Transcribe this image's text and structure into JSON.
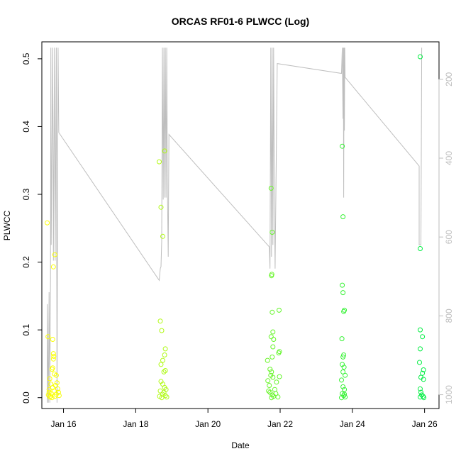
{
  "chart_data": {
    "type": "scatter",
    "title": "ORCAS RF01-6 PLWCC (Log)",
    "xlabel": "Date",
    "ylabel": "PLWCC",
    "xlim": [
      15.4,
      26.4
    ],
    "ylim": [
      -0.016,
      0.525
    ],
    "x_ticks": [
      {
        "value": 16,
        "label": "Jan 16"
      },
      {
        "value": 18,
        "label": "Jan 18"
      },
      {
        "value": 20,
        "label": "Jan 20"
      },
      {
        "value": 22,
        "label": "Jan 22"
      },
      {
        "value": 24,
        "label": "Jan 24"
      },
      {
        "value": 26,
        "label": "Jan 26"
      }
    ],
    "y_ticks": [
      {
        "value": 0.0,
        "label": "0.0"
      },
      {
        "value": 0.1,
        "label": "0.1"
      },
      {
        "value": 0.2,
        "label": "0.2"
      },
      {
        "value": 0.3,
        "label": "0.3"
      },
      {
        "value": 0.4,
        "label": "0.4"
      },
      {
        "value": 0.5,
        "label": "0.5"
      }
    ],
    "y2_ticks": [
      {
        "value": 200,
        "label": "200"
      },
      {
        "value": 400,
        "label": "400"
      },
      {
        "value": 600,
        "label": "600"
      },
      {
        "value": 800,
        "label": "800"
      },
      {
        "value": 1000,
        "label": "1000"
      }
    ],
    "y2lim": [
      105,
      1035
    ],
    "y2_reversed": true,
    "grid": false,
    "legend": "none",
    "colors": {
      "points_start": "#ffff00",
      "points_end": "#00ee44",
      "line": "#bebebe",
      "axis": "#000000",
      "axis2": "#bebebe"
    },
    "scatter_points": [
      {
        "x": 15.55,
        "y": 0.258
      },
      {
        "x": 15.57,
        "y": 0.09
      },
      {
        "x": 15.62,
        "y": 0.028
      },
      {
        "x": 15.7,
        "y": 0.086
      },
      {
        "x": 15.72,
        "y": 0.065
      },
      {
        "x": 15.73,
        "y": 0.061
      },
      {
        "x": 15.72,
        "y": 0.057
      },
      {
        "x": 15.7,
        "y": 0.044
      },
      {
        "x": 15.68,
        "y": 0.042
      },
      {
        "x": 15.75,
        "y": 0.035
      },
      {
        "x": 15.8,
        "y": 0.033
      },
      {
        "x": 15.76,
        "y": 0.211
      },
      {
        "x": 15.72,
        "y": 0.193
      },
      {
        "x": 15.65,
        "y": 0.02
      },
      {
        "x": 15.6,
        "y": 0.012
      },
      {
        "x": 15.58,
        "y": 0.004
      },
      {
        "x": 15.62,
        "y": 0.001
      },
      {
        "x": 15.66,
        "y": 0.006
      },
      {
        "x": 15.7,
        "y": 0.015
      },
      {
        "x": 15.74,
        "y": 0.01
      },
      {
        "x": 15.78,
        "y": 0.018
      },
      {
        "x": 15.82,
        "y": 0.022
      },
      {
        "x": 15.86,
        "y": 0.008
      },
      {
        "x": 15.88,
        "y": 0.003
      },
      {
        "x": 15.64,
        "y": 0.002
      },
      {
        "x": 15.68,
        "y": 0.0
      },
      {
        "x": 15.76,
        "y": 0.002
      },
      {
        "x": 15.84,
        "y": 0.013
      },
      {
        "x": 15.8,
        "y": 0.005
      },
      {
        "x": 15.6,
        "y": 0.008
      },
      {
        "x": 18.65,
        "y": 0.348
      },
      {
        "x": 18.7,
        "y": 0.281
      },
      {
        "x": 18.75,
        "y": 0.238
      },
      {
        "x": 18.8,
        "y": 0.364
      },
      {
        "x": 18.68,
        "y": 0.113
      },
      {
        "x": 18.72,
        "y": 0.099
      },
      {
        "x": 18.82,
        "y": 0.072
      },
      {
        "x": 18.8,
        "y": 0.063
      },
      {
        "x": 18.75,
        "y": 0.055
      },
      {
        "x": 18.7,
        "y": 0.049
      },
      {
        "x": 18.82,
        "y": 0.04
      },
      {
        "x": 18.78,
        "y": 0.038
      },
      {
        "x": 18.7,
        "y": 0.024
      },
      {
        "x": 18.75,
        "y": 0.02
      },
      {
        "x": 18.8,
        "y": 0.015
      },
      {
        "x": 18.68,
        "y": 0.01
      },
      {
        "x": 18.74,
        "y": 0.005
      },
      {
        "x": 18.82,
        "y": 0.003
      },
      {
        "x": 18.86,
        "y": 0.001
      },
      {
        "x": 18.66,
        "y": 0.002
      },
      {
        "x": 18.78,
        "y": 0.008
      },
      {
        "x": 18.84,
        "y": 0.012
      },
      {
        "x": 18.72,
        "y": 0.0
      },
      {
        "x": 21.75,
        "y": 0.309
      },
      {
        "x": 21.78,
        "y": 0.244
      },
      {
        "x": 21.77,
        "y": 0.182
      },
      {
        "x": 21.76,
        "y": 0.18
      },
      {
        "x": 21.97,
        "y": 0.129
      },
      {
        "x": 21.78,
        "y": 0.126
      },
      {
        "x": 21.8,
        "y": 0.097
      },
      {
        "x": 21.75,
        "y": 0.09
      },
      {
        "x": 21.82,
        "y": 0.086
      },
      {
        "x": 21.8,
        "y": 0.075
      },
      {
        "x": 21.98,
        "y": 0.068
      },
      {
        "x": 21.96,
        "y": 0.066
      },
      {
        "x": 21.65,
        "y": 0.055
      },
      {
        "x": 21.78,
        "y": 0.06
      },
      {
        "x": 21.72,
        "y": 0.042
      },
      {
        "x": 21.76,
        "y": 0.038
      },
      {
        "x": 21.74,
        "y": 0.033
      },
      {
        "x": 21.8,
        "y": 0.03
      },
      {
        "x": 21.98,
        "y": 0.031
      },
      {
        "x": 21.66,
        "y": 0.025
      },
      {
        "x": 21.7,
        "y": 0.018
      },
      {
        "x": 21.9,
        "y": 0.023
      },
      {
        "x": 21.85,
        "y": 0.012
      },
      {
        "x": 21.72,
        "y": 0.008
      },
      {
        "x": 21.78,
        "y": 0.004
      },
      {
        "x": 21.82,
        "y": 0.002
      },
      {
        "x": 21.76,
        "y": 0.0
      },
      {
        "x": 21.88,
        "y": 0.006
      },
      {
        "x": 21.68,
        "y": 0.01
      },
      {
        "x": 21.94,
        "y": 0.001
      },
      {
        "x": 23.72,
        "y": 0.371
      },
      {
        "x": 23.74,
        "y": 0.267
      },
      {
        "x": 23.72,
        "y": 0.166
      },
      {
        "x": 23.74,
        "y": 0.155
      },
      {
        "x": 23.78,
        "y": 0.129
      },
      {
        "x": 23.76,
        "y": 0.127
      },
      {
        "x": 23.71,
        "y": 0.087
      },
      {
        "x": 23.76,
        "y": 0.063
      },
      {
        "x": 23.74,
        "y": 0.06
      },
      {
        "x": 23.72,
        "y": 0.049
      },
      {
        "x": 23.77,
        "y": 0.045
      },
      {
        "x": 23.74,
        "y": 0.038
      },
      {
        "x": 23.8,
        "y": 0.033
      },
      {
        "x": 23.7,
        "y": 0.026
      },
      {
        "x": 23.74,
        "y": 0.016
      },
      {
        "x": 23.78,
        "y": 0.012
      },
      {
        "x": 23.72,
        "y": 0.006
      },
      {
        "x": 23.76,
        "y": 0.003
      },
      {
        "x": 23.8,
        "y": 0.001
      },
      {
        "x": 23.7,
        "y": 0.0
      },
      {
        "x": 23.78,
        "y": 0.005
      },
      {
        "x": 25.88,
        "y": 0.503
      },
      {
        "x": 25.88,
        "y": 0.22
      },
      {
        "x": 25.88,
        "y": 0.1
      },
      {
        "x": 25.94,
        "y": 0.09
      },
      {
        "x": 25.88,
        "y": 0.072
      },
      {
        "x": 25.86,
        "y": 0.052
      },
      {
        "x": 25.97,
        "y": 0.041
      },
      {
        "x": 25.94,
        "y": 0.036
      },
      {
        "x": 25.9,
        "y": 0.03
      },
      {
        "x": 25.97,
        "y": 0.027
      },
      {
        "x": 25.88,
        "y": 0.013
      },
      {
        "x": 25.9,
        "y": 0.008
      },
      {
        "x": 25.92,
        "y": 0.004
      },
      {
        "x": 25.96,
        "y": 0.002
      },
      {
        "x": 25.88,
        "y": 0.001
      },
      {
        "x": 25.98,
        "y": 0.0
      }
    ],
    "pressure_line": [
      {
        "x": 15.55,
        "y2": 1020
      },
      {
        "x": 15.55,
        "y2": 770
      },
      {
        "x": 15.58,
        "y2": 1020
      },
      {
        "x": 15.6,
        "y2": 740
      },
      {
        "x": 15.62,
        "y2": 1020
      },
      {
        "x": 15.64,
        "y2": 700
      },
      {
        "x": 15.65,
        "y2": 120
      },
      {
        "x": 15.66,
        "y2": 620
      },
      {
        "x": 15.7,
        "y2": 120
      },
      {
        "x": 15.72,
        "y2": 660
      },
      {
        "x": 15.75,
        "y2": 120
      },
      {
        "x": 15.77,
        "y2": 660
      },
      {
        "x": 15.8,
        "y2": 120
      },
      {
        "x": 15.82,
        "y2": 1020
      },
      {
        "x": 15.85,
        "y2": 120
      },
      {
        "x": 15.87,
        "y2": 335
      },
      {
        "x": 18.65,
        "y2": 710
      },
      {
        "x": 18.68,
        "y2": 680
      },
      {
        "x": 18.7,
        "y2": 675
      },
      {
        "x": 18.72,
        "y2": 610
      },
      {
        "x": 18.74,
        "y2": 120
      },
      {
        "x": 18.76,
        "y2": 505
      },
      {
        "x": 18.78,
        "y2": 120
      },
      {
        "x": 18.8,
        "y2": 500
      },
      {
        "x": 18.82,
        "y2": 120
      },
      {
        "x": 18.84,
        "y2": 500
      },
      {
        "x": 18.86,
        "y2": 120
      },
      {
        "x": 18.88,
        "y2": 500
      },
      {
        "x": 18.9,
        "y2": 650
      },
      {
        "x": 18.92,
        "y2": 340
      },
      {
        "x": 21.7,
        "y2": 625
      },
      {
        "x": 21.72,
        "y2": 680
      },
      {
        "x": 21.74,
        "y2": 120
      },
      {
        "x": 21.76,
        "y2": 650
      },
      {
        "x": 21.78,
        "y2": 120
      },
      {
        "x": 21.8,
        "y2": 620
      },
      {
        "x": 21.82,
        "y2": 120
      },
      {
        "x": 21.84,
        "y2": 510
      },
      {
        "x": 21.86,
        "y2": 680
      },
      {
        "x": 21.92,
        "y2": 160
      },
      {
        "x": 23.7,
        "y2": 185
      },
      {
        "x": 23.72,
        "y2": 120
      },
      {
        "x": 23.74,
        "y2": 300
      },
      {
        "x": 23.75,
        "y2": 120
      },
      {
        "x": 23.76,
        "y2": 500
      },
      {
        "x": 23.77,
        "y2": 120
      },
      {
        "x": 23.78,
        "y2": 330
      },
      {
        "x": 23.79,
        "y2": 120
      },
      {
        "x": 23.8,
        "y2": 195
      },
      {
        "x": 25.85,
        "y2": 420
      },
      {
        "x": 25.85,
        "y2": 620
      },
      {
        "x": 25.9,
        "y2": 620
      },
      {
        "x": 25.92,
        "y2": 120
      }
    ]
  }
}
